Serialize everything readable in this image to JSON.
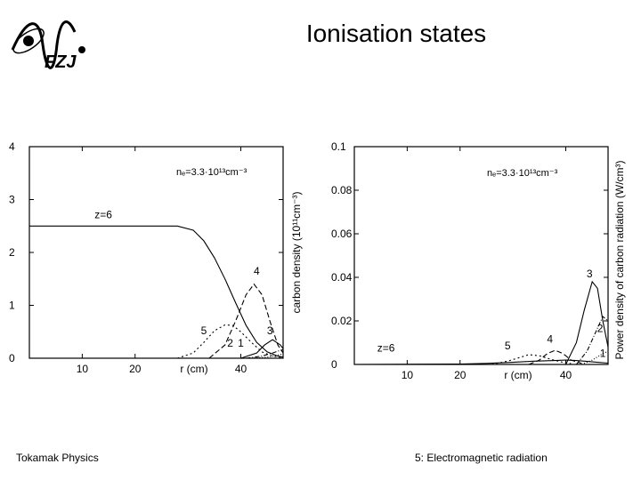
{
  "slide": {
    "title": "Ionisation states",
    "footer_left": "Tokamak Physics",
    "footer_right": "5: Electromagnetic radiation",
    "logo_text": "FZJ"
  },
  "chart_data": [
    {
      "type": "line",
      "title": "",
      "xlabel": "r (cm)",
      "ylabel": "carbon density (10¹¹cm⁻³)",
      "annotation": "nₑ=3.3·10¹³cm⁻³",
      "xlim": [
        0,
        48
      ],
      "ylim": [
        0,
        4
      ],
      "xticks": [
        10,
        20,
        40
      ],
      "yticks": [
        0,
        1,
        2,
        3,
        4
      ],
      "series": [
        {
          "name": "z=6",
          "dash": "",
          "x": [
            0,
            28,
            31,
            33,
            35,
            37,
            39,
            41,
            43,
            45,
            47,
            48
          ],
          "y": [
            2.5,
            2.5,
            2.42,
            2.22,
            1.9,
            1.5,
            1.05,
            0.62,
            0.3,
            0.12,
            0.04,
            0.02
          ]
        },
        {
          "name": "4",
          "dash": "6 3",
          "x": [
            34,
            37,
            39,
            41,
            42.5,
            44,
            45.5,
            47,
            48
          ],
          "y": [
            0,
            0.25,
            0.7,
            1.2,
            1.4,
            1.2,
            0.7,
            0.25,
            0.1
          ]
        },
        {
          "name": "5",
          "dash": "2 3",
          "x": [
            28,
            31,
            33,
            35,
            37,
            38.5,
            40,
            42,
            44,
            46,
            48
          ],
          "y": [
            0,
            0.1,
            0.3,
            0.52,
            0.63,
            0.62,
            0.5,
            0.3,
            0.12,
            0.04,
            0.01
          ]
        },
        {
          "name": "3",
          "dash": "",
          "x": [
            40,
            43,
            44.5,
            46,
            47.5,
            48
          ],
          "y": [
            0,
            0.1,
            0.25,
            0.35,
            0.25,
            0.18
          ]
        },
        {
          "name": "2",
          "dash": "5 2 1 2",
          "x": [
            41,
            44,
            46,
            47.5,
            48
          ],
          "y": [
            0,
            0.04,
            0.1,
            0.15,
            0.16
          ]
        },
        {
          "name": "1",
          "dash": "1 2",
          "x": [
            42,
            45,
            47,
            48
          ],
          "y": [
            0,
            0.02,
            0.06,
            0.08
          ]
        }
      ],
      "labels": [
        {
          "text": "z=6",
          "x": 14,
          "y": 2.65
        },
        {
          "text": "4",
          "x": 43,
          "y": 1.58
        },
        {
          "text": "5",
          "x": 33,
          "y": 0.45
        },
        {
          "text": "3",
          "x": 45.5,
          "y": 0.45
        },
        {
          "text": "2",
          "x": 38,
          "y": 0.22
        },
        {
          "text": "1",
          "x": 40,
          "y": 0.22
        }
      ]
    },
    {
      "type": "line",
      "title": "",
      "xlabel": "r (cm)",
      "ylabel": "Power density of carbon radiation (W/cm³)",
      "annotation": "nₑ=3.3·10¹³cm⁻³",
      "xlim": [
        0,
        48
      ],
      "ylim": [
        0,
        0.1
      ],
      "xticks": [
        10,
        20,
        40
      ],
      "yticks": [
        0,
        0.02,
        0.04,
        0.06,
        0.08,
        0.1
      ],
      "series": [
        {
          "name": "z=6",
          "dash": "",
          "x": [
            0,
            20,
            25,
            30,
            34,
            38,
            40,
            42,
            44,
            46,
            48
          ],
          "y": [
            0.0,
            0.0002,
            0.0005,
            0.001,
            0.0015,
            0.0018,
            0.002,
            0.0018,
            0.0014,
            0.001,
            0.0006
          ]
        },
        {
          "name": "5",
          "dash": "2 3",
          "x": [
            26,
            29,
            31,
            33,
            35,
            37,
            39,
            41
          ],
          "y": [
            0,
            0.0015,
            0.003,
            0.0045,
            0.004,
            0.0025,
            0.0012,
            0.0004
          ]
        },
        {
          "name": "4",
          "dash": "6 3",
          "x": [
            33,
            35,
            36.5,
            38,
            39.5,
            41,
            43
          ],
          "y": [
            0,
            0.002,
            0.005,
            0.0065,
            0.005,
            0.002,
            0.0005
          ]
        },
        {
          "name": "3",
          "dash": "",
          "x": [
            40,
            42,
            43.5,
            45,
            46,
            47,
            48
          ],
          "y": [
            0,
            0.01,
            0.025,
            0.038,
            0.035,
            0.02,
            0.008
          ]
        },
        {
          "name": "2",
          "dash": "5 2 1 2",
          "x": [
            42,
            44,
            45.5,
            47,
            48
          ],
          "y": [
            0,
            0.006,
            0.014,
            0.022,
            0.02
          ]
        },
        {
          "name": "1",
          "dash": "1 2",
          "x": [
            43,
            45,
            47,
            48
          ],
          "y": [
            0,
            0.002,
            0.005,
            0.006
          ]
        }
      ],
      "labels": [
        {
          "text": "z=6",
          "x": 6,
          "y": 0.006
        },
        {
          "text": "5",
          "x": 29,
          "y": 0.007
        },
        {
          "text": "4",
          "x": 37,
          "y": 0.01
        },
        {
          "text": "3",
          "x": 44.5,
          "y": 0.04
        },
        {
          "text": "2",
          "x": 46.5,
          "y": 0.015
        },
        {
          "text": "1",
          "x": 47,
          "y": 0.0035
        }
      ]
    }
  ]
}
